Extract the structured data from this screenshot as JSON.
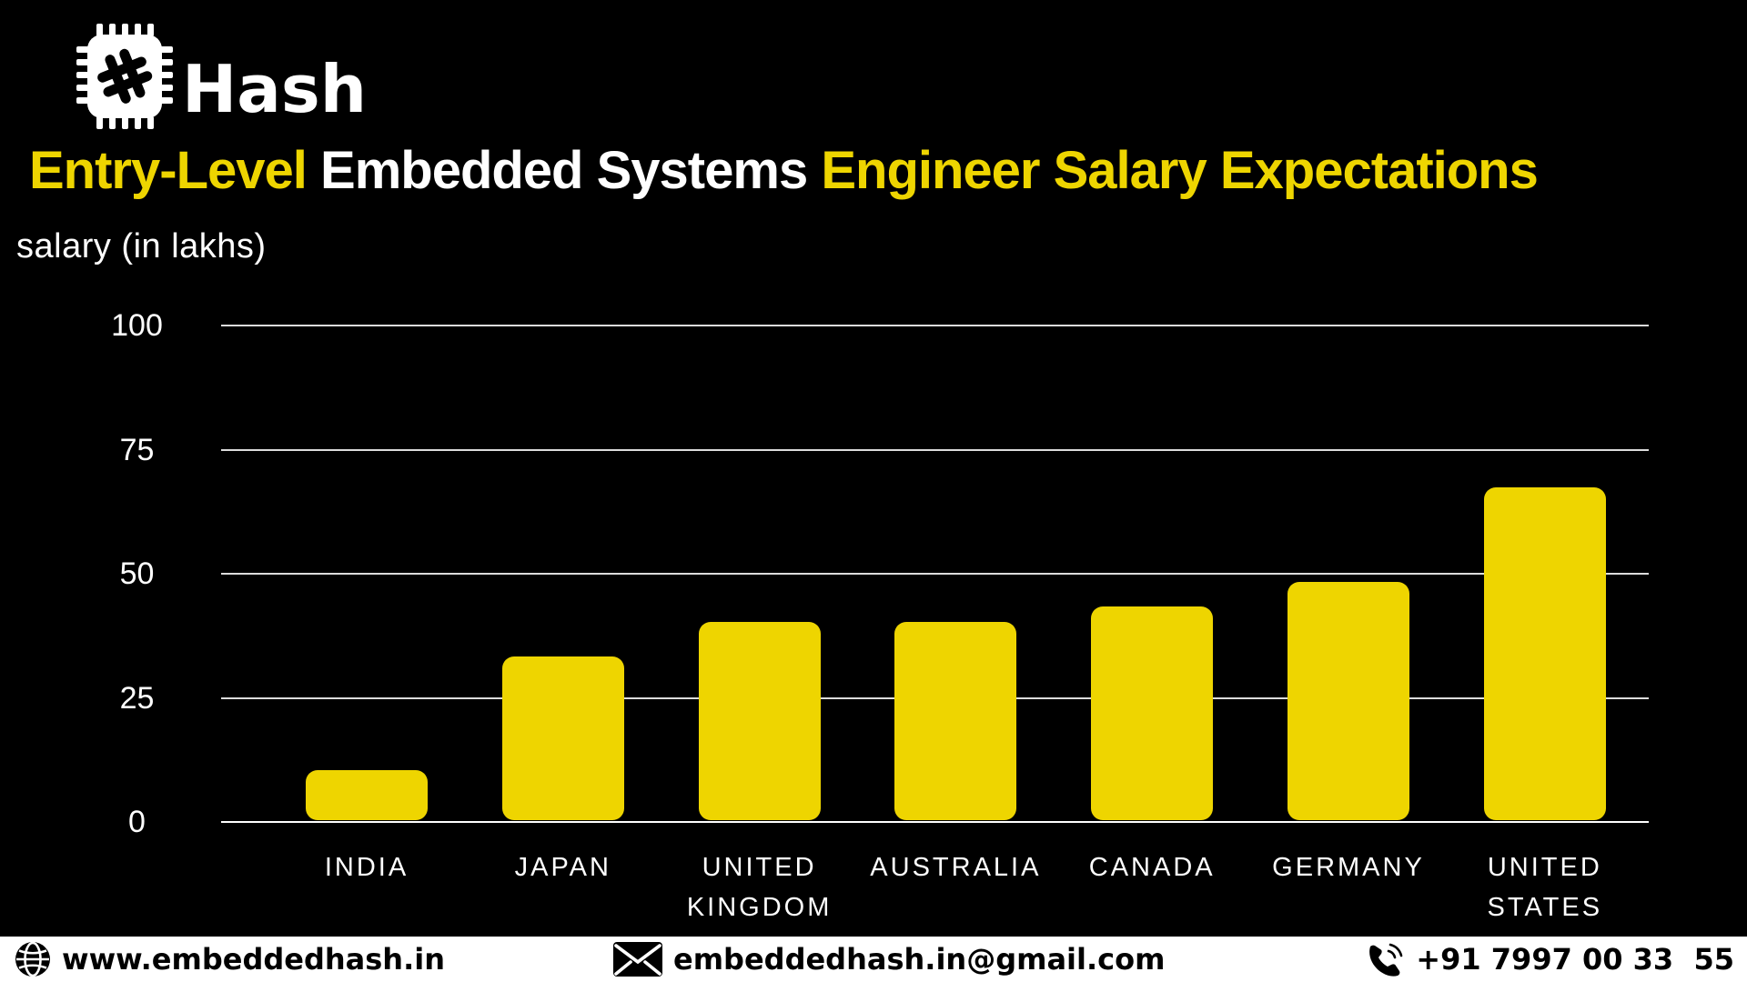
{
  "brand": {
    "name": "Hash",
    "logo_icon": "chip-hash-icon"
  },
  "title": {
    "part1": "Entry-Level",
    "part2": " Embedded Systems ",
    "part3": "Engineer Salary Expectations"
  },
  "chart_data": {
    "type": "bar",
    "title": "Entry-Level Embedded Systems Engineer Salary Expectations",
    "ylabel": "salary (in lakhs)",
    "categories": [
      "INDIA",
      "JAPAN",
      "UNITED KINGDOM",
      "AUSTRALIA",
      "CANADA",
      "GERMANY",
      "UNITED STATES"
    ],
    "values": [
      10,
      33,
      40,
      40,
      43,
      48,
      67
    ],
    "ylim": [
      0,
      100
    ],
    "yticks": [
      0,
      25,
      50,
      75,
      100
    ],
    "grid": true,
    "legend": false,
    "bar_color": "#EED500"
  },
  "colors": {
    "background": "#000000",
    "accent_yellow": "#EED500",
    "text_white": "#FFFFFF",
    "footer_bg": "#FFFFFF",
    "footer_text": "#000000"
  },
  "footer": {
    "website": "www.embeddedhash.in",
    "email": "embeddedhash.in@gmail.com",
    "phone": "+91 7997 00 33  55"
  }
}
